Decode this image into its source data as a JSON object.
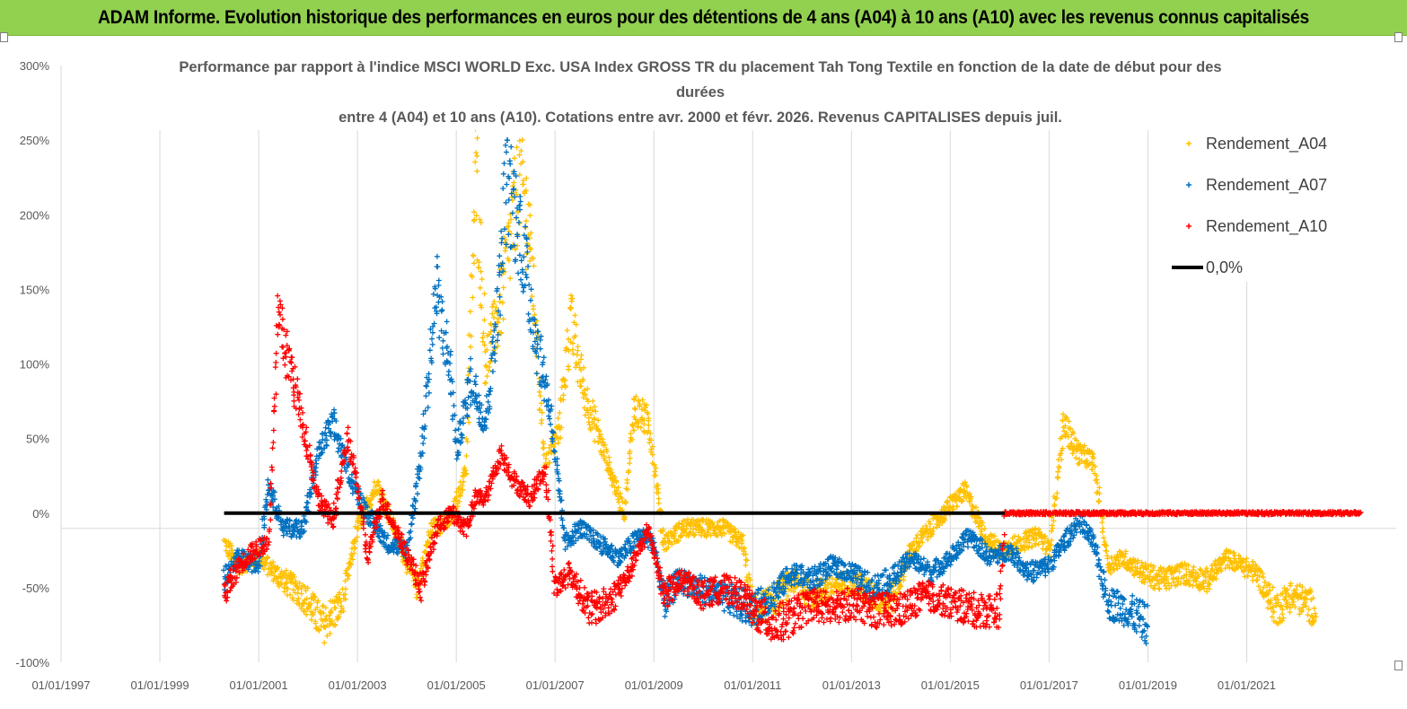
{
  "header": {
    "title": "ADAM Informe. Evolution historique des performances en euros pour des détentions de 4 ans (A04) à 10 ans (A10) avec les revenus connus capitalisés"
  },
  "colors": {
    "banner": "#92D050",
    "a04": "#FFC000",
    "a07": "#0070C0",
    "a10": "#FF0000",
    "zero": "#000000",
    "grid": "#D9D9D9"
  },
  "chart_data": {
    "type": "scatter",
    "title_lines": [
      "Performance par rapport à l'indice MSCI WORLD Exc. USA Index GROSS TR  du placement Tah Tong Textile  en fonction de la date de début pour des",
      "durées",
      "entre 4 (A04) et 10 ans (A10). Cotations entre avr. 2000 et févr. 2026. Revenus CAPITALISES depuis juil."
    ],
    "x_ticks": [
      "01/01/1997",
      "01/01/1999",
      "01/01/2001",
      "01/01/2003",
      "01/01/2005",
      "01/01/2007",
      "01/01/2009",
      "01/01/2011",
      "01/01/2013",
      "01/01/2015",
      "01/01/2017",
      "01/01/2019",
      "01/01/2021"
    ],
    "x_range": [
      1997.0,
      2023.3
    ],
    "y_ticks": [
      "300%",
      "250%",
      "200%",
      "150%",
      "100%",
      "50%",
      "0%",
      "-50%",
      "-100%"
    ],
    "y_range": [
      -100,
      300
    ],
    "legend_position": "top-right",
    "series": [
      {
        "name": "Rendement_A04",
        "color": "#FFC000",
        "knots": [
          [
            2000.3,
            -20
          ],
          [
            2000.6,
            -35
          ],
          [
            2001.0,
            -30
          ],
          [
            2001.5,
            -45
          ],
          [
            2001.9,
            -55
          ],
          [
            2002.3,
            -75
          ],
          [
            2002.7,
            -60
          ],
          [
            2003.0,
            -10
          ],
          [
            2003.4,
            20
          ],
          [
            2003.8,
            -15
          ],
          [
            2004.2,
            -50
          ],
          [
            2004.5,
            -10
          ],
          [
            2004.9,
            -5
          ],
          [
            2005.2,
            30
          ],
          [
            2005.4,
            230
          ],
          [
            2005.6,
            100
          ],
          [
            2005.9,
            140
          ],
          [
            2006.3,
            230
          ],
          [
            2006.5,
            180
          ],
          [
            2006.8,
            30
          ],
          [
            2007.1,
            60
          ],
          [
            2007.3,
            130
          ],
          [
            2007.6,
            80
          ],
          [
            2008.0,
            40
          ],
          [
            2008.4,
            0
          ],
          [
            2008.6,
            70
          ],
          [
            2008.9,
            60
          ],
          [
            2009.2,
            -20
          ],
          [
            2009.6,
            -10
          ],
          [
            2010.0,
            -10
          ],
          [
            2010.4,
            -10
          ],
          [
            2010.8,
            -20
          ],
          [
            2011.0,
            -65
          ],
          [
            2011.4,
            -60
          ],
          [
            2011.8,
            -45
          ],
          [
            2012.2,
            -55
          ],
          [
            2012.6,
            -50
          ],
          [
            2013.0,
            -45
          ],
          [
            2013.4,
            -55
          ],
          [
            2013.8,
            -60
          ],
          [
            2014.2,
            -25
          ],
          [
            2014.6,
            -10
          ],
          [
            2015.0,
            5
          ],
          [
            2015.3,
            15
          ],
          [
            2015.7,
            -15
          ],
          [
            2016.0,
            -25
          ],
          [
            2016.4,
            -20
          ],
          [
            2016.8,
            -15
          ],
          [
            2017.0,
            -25
          ],
          [
            2017.3,
            60
          ],
          [
            2017.6,
            40
          ],
          [
            2017.9,
            35
          ],
          [
            2018.2,
            -35
          ],
          [
            2018.5,
            -30
          ],
          [
            2018.9,
            -40
          ],
          [
            2019.3,
            -45
          ],
          [
            2019.7,
            -40
          ],
          [
            2020.2,
            -45
          ],
          [
            2020.6,
            -30
          ],
          [
            2020.9,
            -35
          ],
          [
            2021.2,
            -40
          ],
          [
            2021.6,
            -65
          ],
          [
            2021.9,
            -55
          ],
          [
            2022.2,
            -60
          ],
          [
            2022.4,
            -65
          ]
        ]
      },
      {
        "name": "Rendement_A07",
        "color": "#0070C0",
        "knots": [
          [
            2000.3,
            -45
          ],
          [
            2000.6,
            -30
          ],
          [
            2001.0,
            -35
          ],
          [
            2001.2,
            20
          ],
          [
            2001.5,
            -10
          ],
          [
            2001.9,
            -10
          ],
          [
            2002.2,
            40
          ],
          [
            2002.5,
            60
          ],
          [
            2002.9,
            20
          ],
          [
            2003.2,
            0
          ],
          [
            2003.6,
            -20
          ],
          [
            2004.0,
            -25
          ],
          [
            2004.3,
            40
          ],
          [
            2004.6,
            150
          ],
          [
            2004.9,
            90
          ],
          [
            2005.0,
            40
          ],
          [
            2005.3,
            90
          ],
          [
            2005.6,
            60
          ],
          [
            2005.9,
            160
          ],
          [
            2006.0,
            220
          ],
          [
            2006.3,
            190
          ],
          [
            2006.6,
            120
          ],
          [
            2006.9,
            70
          ],
          [
            2007.2,
            -20
          ],
          [
            2007.5,
            -10
          ],
          [
            2007.9,
            -20
          ],
          [
            2008.3,
            -30
          ],
          [
            2008.7,
            -15
          ],
          [
            2009.0,
            -20
          ],
          [
            2009.2,
            -60
          ],
          [
            2009.5,
            -45
          ],
          [
            2009.9,
            -50
          ],
          [
            2010.3,
            -55
          ],
          [
            2010.7,
            -60
          ],
          [
            2011.0,
            -65
          ],
          [
            2011.4,
            -55
          ],
          [
            2011.8,
            -40
          ],
          [
            2012.2,
            -45
          ],
          [
            2012.6,
            -35
          ],
          [
            2013.0,
            -40
          ],
          [
            2013.4,
            -50
          ],
          [
            2013.8,
            -45
          ],
          [
            2014.2,
            -30
          ],
          [
            2014.6,
            -40
          ],
          [
            2015.0,
            -30
          ],
          [
            2015.4,
            -15
          ],
          [
            2015.8,
            -30
          ],
          [
            2016.2,
            -25
          ],
          [
            2016.6,
            -40
          ],
          [
            2017.0,
            -35
          ],
          [
            2017.3,
            -20
          ],
          [
            2017.6,
            -5
          ],
          [
            2017.9,
            -20
          ],
          [
            2018.2,
            -60
          ],
          [
            2018.6,
            -65
          ],
          [
            2019.0,
            -75
          ]
        ]
      },
      {
        "name": "Rendement_A10",
        "color": "#FF0000",
        "knots": [
          [
            2000.3,
            -55
          ],
          [
            2000.6,
            -35
          ],
          [
            2000.9,
            -25
          ],
          [
            2001.2,
            -20
          ],
          [
            2001.4,
            130
          ],
          [
            2001.7,
            90
          ],
          [
            2001.9,
            60
          ],
          [
            2002.2,
            10
          ],
          [
            2002.5,
            -5
          ],
          [
            2002.8,
            50
          ],
          [
            2003.0,
            20
          ],
          [
            2003.2,
            -30
          ],
          [
            2003.5,
            10
          ],
          [
            2003.9,
            -20
          ],
          [
            2004.3,
            -50
          ],
          [
            2004.6,
            -10
          ],
          [
            2004.9,
            0
          ],
          [
            2005.2,
            -10
          ],
          [
            2005.4,
            10
          ],
          [
            2005.6,
            10
          ],
          [
            2005.9,
            40
          ],
          [
            2006.2,
            20
          ],
          [
            2006.5,
            10
          ],
          [
            2006.8,
            30
          ],
          [
            2007.0,
            -50
          ],
          [
            2007.3,
            -40
          ],
          [
            2007.7,
            -65
          ],
          [
            2008.1,
            -60
          ],
          [
            2008.5,
            -40
          ],
          [
            2008.9,
            -10
          ],
          [
            2009.2,
            -55
          ],
          [
            2009.6,
            -45
          ],
          [
            2010.0,
            -55
          ],
          [
            2010.4,
            -50
          ],
          [
            2010.8,
            -55
          ],
          [
            2011.0,
            -65
          ],
          [
            2011.4,
            -75
          ],
          [
            2011.8,
            -70
          ],
          [
            2012.2,
            -60
          ],
          [
            2012.6,
            -65
          ],
          [
            2013.0,
            -60
          ],
          [
            2013.5,
            -65
          ],
          [
            2014.0,
            -65
          ],
          [
            2014.5,
            -55
          ],
          [
            2015.0,
            -60
          ],
          [
            2015.5,
            -65
          ],
          [
            2016.0,
            -65
          ],
          [
            2016.1,
            0
          ],
          [
            2023.3,
            0
          ]
        ]
      }
    ],
    "zero_line": {
      "name": "0,0%",
      "color": "#000000",
      "x_start": 2000.3,
      "x_end": 2016.1,
      "y": 0
    }
  }
}
